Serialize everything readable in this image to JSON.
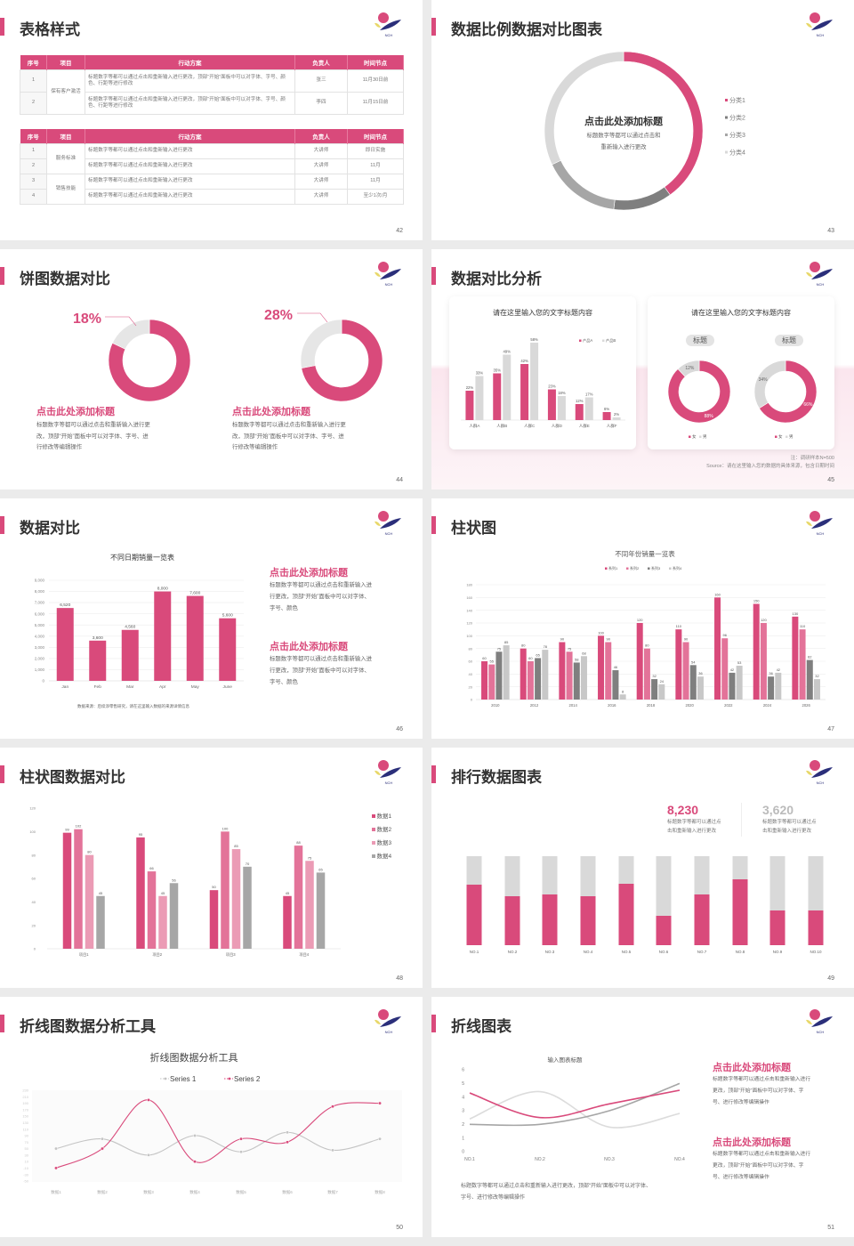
{
  "colors": {
    "accent": "#d94a7b",
    "accent_2": "#e37399",
    "accent_3": "#eb9bb5",
    "dark_gray": "#7f7f7f",
    "mid_gray": "#a6a6a6",
    "light_gray": "#d9d9d9",
    "logo_navy": "#2b2f7a",
    "logo_yellow": "#e8d86a"
  },
  "logo_text": "NCH",
  "slides": [
    {
      "title": "表格样式",
      "page": "42",
      "tables": [
        {
          "headers": [
            "序号",
            "项目",
            "行动方案",
            "负责人",
            "时间节点"
          ],
          "groups": [
            {
              "project": "保有客户激活",
              "rows": [
                {
                  "no": "1",
                  "plan": "标题数字等都可以通过点击和重新输入进行更改，顶部“开始”面板中可以对字体、字号、颜色、行距等进行修改",
                  "owner": "张三",
                  "deadline": "11月30日前"
                },
                {
                  "no": "2",
                  "plan": "标题数字等都可以通过点击和重新输入进行更改，顶部“开始”面板中可以对字体、字号、颜色、行距等进行修改",
                  "owner": "李四",
                  "deadline": "11月15日前"
                }
              ]
            }
          ]
        },
        {
          "headers": [
            "序号",
            "项目",
            "行动方案",
            "负责人",
            "时间节点"
          ],
          "groups": [
            {
              "project": "服务标准",
              "rows": [
                {
                  "no": "1",
                  "plan": "标题数字等都可以通过点击和重新输入进行更改",
                  "owner": "大讲师",
                  "deadline": "即日实施"
                },
                {
                  "no": "2",
                  "plan": "标题数字等都可以通过点击和重新输入进行更改",
                  "owner": "大讲师",
                  "deadline": "11月"
                }
              ]
            },
            {
              "project": "销售技能",
              "rows": [
                {
                  "no": "3",
                  "plan": "标题数字等都可以通过点击和重新输入进行更改",
                  "owner": "大讲师",
                  "deadline": "11月"
                },
                {
                  "no": "4",
                  "plan": "标题数字等都可以通过点击和重新输入进行更改",
                  "owner": "大讲师",
                  "deadline": "至少1次/月"
                }
              ]
            }
          ]
        }
      ]
    },
    {
      "title": "数据比例数据对比图表",
      "page": "43",
      "center_title": "点击此处添加标题",
      "center_desc": [
        "标题数字等都可以通过点击和",
        "重新输入进行更改"
      ]
    },
    {
      "title": "饼图数据对比",
      "page": "44",
      "items": [
        {
          "percent": "18%",
          "heading": "点击此处添加标题",
          "desc": [
            "标题数字等都可以通过点击和重新输入进行更",
            "改，顶部“开始”面板中可以对字体、字号、进",
            "行修改等编辑操作"
          ]
        },
        {
          "percent": "28%",
          "heading": "点击此处添加标题",
          "desc": [
            "标题数字等都可以通过点击和重新输入进行更",
            "改，顶部“开始”面板中可以对字体、字号、进",
            "行修改等编辑操作"
          ]
        }
      ]
    },
    {
      "title": "数据对比分析",
      "page": "45",
      "card1_title": "请在这里输入您的文字标题内容",
      "card2_title": "请在这里输入您的文字标题内容",
      "pill_labels": [
        "标题",
        "标题"
      ],
      "note": "注：调研样本N=500",
      "source": "Source：请在这里输入您的数据的具体来源，包含日期时间"
    },
    {
      "title": "数据对比",
      "page": "46",
      "blocks": [
        {
          "heading": "点击此处添加标题",
          "desc": [
            "标题数字等都可以通过点击和重新输入进",
            "行更改，顶部“开始”面板中可以对字体、",
            "字号、颜色"
          ]
        },
        {
          "heading": "点击此处添加标题",
          "desc": [
            "标题数字等都可以通过点击和重新输入进",
            "行更改，顶部“开始”面板中可以对字体、",
            "字号、颜色"
          ]
        }
      ]
    },
    {
      "title": "柱状图",
      "page": "47"
    },
    {
      "title": "柱状图数据对比",
      "page": "48"
    },
    {
      "title": "排行数据图表",
      "page": "49",
      "stats": [
        {
          "value": "8,230",
          "desc": [
            "标题数字等都可以通过点",
            "击和重新输入进行更改"
          ]
        },
        {
          "value": "3,620",
          "desc": [
            "标题数字等都可以通过点",
            "击和重新输入进行更改"
          ]
        }
      ]
    },
    {
      "title": "折线图数据分析工具",
      "page": "50"
    },
    {
      "title": "折线图表",
      "page": "51",
      "footer_desc": [
        "标题数字等都可以通过点击和重新输入进行更改，顶部“开始”面板中可以对字体、",
        "字号、进行修改等编辑操作"
      ],
      "blocks": [
        {
          "heading": "点击此处添加标题",
          "desc": [
            "标题数字等都可以通过点击和重新输入进行",
            "更改，顶部“开始”面板中可以对字体、字",
            "号、进行修改等编辑操作"
          ]
        },
        {
          "heading": "点击此处添加标题",
          "desc": [
            "标题数字等都可以通过点击和重新输入进行",
            "更改，顶部“开始”面板中可以对字体、字",
            "号、进行修改等编辑操作"
          ]
        }
      ]
    }
  ],
  "chart_data": [
    {
      "type": "pie",
      "categories": [
        "分类1",
        "分类2",
        "分类3",
        "分类4"
      ],
      "values": [
        40,
        12,
        16,
        32
      ],
      "colors": [
        "#d94a7b",
        "#7f7f7f",
        "#a6a6a6",
        "#d9d9d9"
      ],
      "legend": "right"
    },
    {
      "type": "pie",
      "values": [
        82,
        18
      ],
      "colors": [
        "#d94a7b",
        "#e6e6e6"
      ]
    },
    {
      "type": "pie",
      "values": [
        72,
        28
      ],
      "colors": [
        "#d94a7b",
        "#e6e6e6"
      ]
    },
    {
      "type": "bar",
      "title": "请在这里输入您的文字标题内容",
      "categories": [
        "人群A",
        "人群B",
        "人群C",
        "人群D",
        "人群E",
        "人群F"
      ],
      "series": [
        {
          "name": "产品A",
          "values": [
            22,
            35,
            42,
            23,
            12,
            6
          ],
          "labels": [
            "22%",
            "35%",
            "42%",
            "23%",
            "12%",
            "6%"
          ]
        },
        {
          "name": "产品B",
          "values": [
            33,
            49,
            58,
            18,
            17,
            2
          ],
          "labels": [
            "33%",
            "49%",
            "58%",
            "18%",
            "17%",
            "2%"
          ]
        }
      ],
      "colors": [
        "#d94a7b",
        "#d9d9d9"
      ],
      "legend": "top-right"
    },
    {
      "type": "pie",
      "categories": [
        "女",
        "男"
      ],
      "values": [
        88,
        12
      ],
      "labels": [
        "88%",
        "12%"
      ],
      "colors": [
        "#d94a7b",
        "#d9d9d9"
      ],
      "legend": "bottom"
    },
    {
      "type": "pie",
      "categories": [
        "女",
        "男"
      ],
      "values": [
        66,
        34
      ],
      "labels": [
        "66%",
        "34%"
      ],
      "colors": [
        "#d94a7b",
        "#d9d9d9"
      ],
      "legend": "bottom"
    },
    {
      "type": "bar",
      "title": "不同日期销量一览表",
      "categories": [
        "Jan",
        "Feb",
        "Mar",
        "Apr",
        "May",
        "June"
      ],
      "series": [
        {
          "values": [
            6520,
            3600,
            4560,
            8000,
            7600,
            5600
          ],
          "labels": [
            "6,520",
            "3,600",
            "4,560",
            "8,000",
            "7,600",
            "5,600"
          ]
        }
      ],
      "y_tick_labels": [
        "0",
        "1,000",
        "2,000",
        "3,000",
        "4,000",
        "5,000",
        "6,000",
        "7,000",
        "8,000",
        "9,000"
      ],
      "ylim": [
        0,
        9000
      ],
      "grid": true,
      "colors": [
        "#d94a7b"
      ],
      "source": "数据来源：后续添零售研究，请在这里输入数据的来源详情信息"
    },
    {
      "type": "bar",
      "title": "不同年份销量一览表",
      "categories": [
        "2010",
        "2012",
        "2014",
        "2016",
        "2018",
        "2020",
        "2022",
        "2024",
        "2026"
      ],
      "series": [
        {
          "name": "系列1",
          "values": [
            60,
            80,
            90,
            100,
            120,
            110,
            160,
            150,
            130
          ]
        },
        {
          "name": "系列2",
          "values": [
            55,
            60,
            75,
            90,
            80,
            90,
            96,
            120,
            110
          ]
        },
        {
          "name": "系列3",
          "values": [
            75,
            65,
            58,
            46,
            32,
            54,
            42,
            36,
            62
          ]
        },
        {
          "name": "系列4",
          "values": [
            85,
            78,
            68,
            8,
            24,
            36,
            53,
            42,
            32
          ]
        }
      ],
      "y_tick_labels": [
        "0",
        "20",
        "40",
        "60",
        "80",
        "100",
        "120",
        "140",
        "160",
        "180"
      ],
      "ylim": [
        0,
        180
      ],
      "grid": true,
      "colors": [
        "#d94a7b",
        "#e37399",
        "#7f7f7f",
        "#c8c8c8"
      ],
      "legend": "top"
    },
    {
      "type": "bar",
      "categories": [
        "项目1",
        "项目2",
        "项目3",
        "项目4"
      ],
      "series": [
        {
          "name": "数据1",
          "values": [
            99,
            95,
            50,
            45
          ]
        },
        {
          "name": "数据2",
          "values": [
            102,
            66,
            100,
            88
          ]
        },
        {
          "name": "数据3",
          "values": [
            80,
            45,
            85,
            75
          ]
        },
        {
          "name": "数据4",
          "values": [
            45,
            56,
            70,
            65
          ]
        }
      ],
      "y_tick_labels": [
        "0",
        "20",
        "40",
        "60",
        "80",
        "100",
        "120"
      ],
      "ylim": [
        0,
        120
      ],
      "colors": [
        "#d94a7b",
        "#e37399",
        "#eb9bb5",
        "#a6a6a6"
      ],
      "legend": "right"
    },
    {
      "type": "bar",
      "stacked": true,
      "categories": [
        "NO.1",
        "NO.2",
        "NO.3",
        "NO.4",
        "NO.5",
        "NO.6",
        "NO.7",
        "NO.8",
        "NO.9",
        "NO.10"
      ],
      "values": [
        0.68,
        0.55,
        0.57,
        0.55,
        0.69,
        0.33,
        0.57,
        0.74,
        0.39,
        0.39
      ],
      "colors": [
        "#d94a7b",
        "#d9d9d9"
      ]
    },
    {
      "type": "line",
      "title": "折线图数据分析工具",
      "categories": [
        "数据1",
        "数据2",
        "数据3",
        "数据4",
        "数据5",
        "数据6",
        "数据7",
        "数据8"
      ],
      "series": [
        {
          "name": "Series 1",
          "values": [
            50,
            80,
            30,
            90,
            40,
            100,
            45,
            80
          ]
        },
        {
          "name": "Series 2",
          "values": [
            -10,
            50,
            200,
            10,
            80,
            70,
            180,
            190
          ]
        }
      ],
      "y_tick_labels": [
        "230",
        "210",
        "190",
        "170",
        "150",
        "130",
        "110",
        "90",
        "70",
        "50",
        "30",
        "10",
        "-10",
        "-30",
        "-50"
      ],
      "ylim": [
        -50,
        230
      ],
      "colors": [
        "#c4c4c4",
        "#d94a7b"
      ],
      "legend": "top"
    },
    {
      "type": "line",
      "title": "输入图表标题",
      "categories": [
        "NO.1",
        "NO.2",
        "NO.3",
        "NO.4"
      ],
      "series": [
        {
          "values": [
            4.3,
            2.5,
            3.5,
            4.5
          ]
        },
        {
          "values": [
            2,
            2,
            3,
            5
          ]
        },
        {
          "values": [
            2.4,
            4.4,
            1.8,
            2.8
          ]
        }
      ],
      "y_tick_labels": [
        "0",
        "1",
        "2",
        "3",
        "4",
        "5",
        "6"
      ],
      "ylim": [
        0,
        6
      ],
      "colors": [
        "#d94a7b",
        "#a6a6a6",
        "#dcdcdc"
      ]
    }
  ]
}
